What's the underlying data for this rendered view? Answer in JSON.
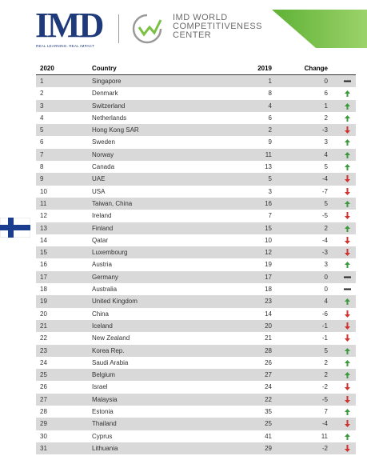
{
  "header": {
    "logo": "IMD",
    "tagline": "REAL LEARNING. REAL IMPACT",
    "center": "IMD WORLD\nCOMPETITIVENESS\nCENTER"
  },
  "table": {
    "columns": [
      "2020",
      "Country",
      "2019",
      "Change"
    ],
    "rows": [
      [
        1,
        "Singapore",
        1,
        0
      ],
      [
        2,
        "Denmark",
        8,
        6
      ],
      [
        3,
        "Switzerland",
        4,
        1
      ],
      [
        4,
        "Netherlands",
        6,
        2
      ],
      [
        5,
        "Hong Kong SAR",
        2,
        -3
      ],
      [
        6,
        "Sweden",
        9,
        3
      ],
      [
        7,
        "Norway",
        11,
        4
      ],
      [
        8,
        "Canada",
        13,
        5
      ],
      [
        9,
        "UAE",
        5,
        -4
      ],
      [
        10,
        "USA",
        3,
        -7
      ],
      [
        11,
        "Taiwan, China",
        16,
        5
      ],
      [
        12,
        "Ireland",
        7,
        -5
      ],
      [
        13,
        "Finland",
        15,
        2
      ],
      [
        14,
        "Qatar",
        10,
        -4
      ],
      [
        15,
        "Luxembourg",
        12,
        -3
      ],
      [
        16,
        "Austria",
        19,
        3
      ],
      [
        17,
        "Germany",
        17,
        0
      ],
      [
        18,
        "Australia",
        18,
        0
      ],
      [
        19,
        "United Kingdom",
        23,
        4
      ],
      [
        20,
        "China",
        14,
        -6
      ],
      [
        21,
        "Iceland",
        20,
        -1
      ],
      [
        22,
        "New Zealand",
        21,
        -1
      ],
      [
        23,
        "Korea Rep.",
        28,
        5
      ],
      [
        24,
        "Saudi Arabia",
        26,
        2
      ],
      [
        25,
        "Belgium",
        27,
        2
      ],
      [
        26,
        "Israel",
        24,
        -2
      ],
      [
        27,
        "Malaysia",
        22,
        -5
      ],
      [
        28,
        "Estonia",
        35,
        7
      ],
      [
        29,
        "Thailand",
        25,
        -4
      ],
      [
        30,
        "Cyprus",
        41,
        11
      ],
      [
        31,
        "Lithuania",
        29,
        -2
      ]
    ]
  }
}
